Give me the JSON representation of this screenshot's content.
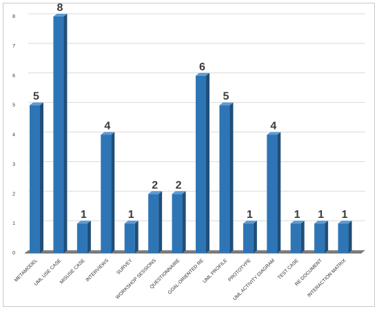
{
  "chart_data": {
    "type": "bar",
    "categories": [
      "METAMODEL",
      "UML USE CASE",
      "MISUSE CASE",
      "INTERVIEWS",
      "SURVEY",
      "WORKSHOP SESSIONS",
      "QUESTIONNAIRE",
      "GOAL-ORIENTED RE",
      "UML PROFILE",
      "PROTOTYPE",
      "UML ACTIVITY DIAGRAM",
      "TEST CASE",
      "RE DOCUMENT",
      "INTERACTION MATRIX"
    ],
    "values": [
      5,
      8,
      1,
      4,
      1,
      2,
      2,
      6,
      5,
      1,
      4,
      1,
      1,
      1
    ],
    "value_labels": [
      "5",
      "8",
      "1",
      "4",
      "1",
      "2",
      "2",
      "6",
      "5",
      "1",
      "4",
      "1",
      "1",
      "1"
    ],
    "yticks": [
      "0",
      "1",
      "2",
      "3",
      "4",
      "5",
      "6",
      "7",
      "8"
    ],
    "ylim": [
      0,
      8
    ],
    "title": "",
    "xlabel": "",
    "ylabel": "",
    "grid": true,
    "legend": "none",
    "bar_color": "#2e75b6",
    "bar_side_color": "#1f4e79",
    "bar_top_color": "#5b9bd5",
    "floor_color": "#7f7f7f"
  }
}
